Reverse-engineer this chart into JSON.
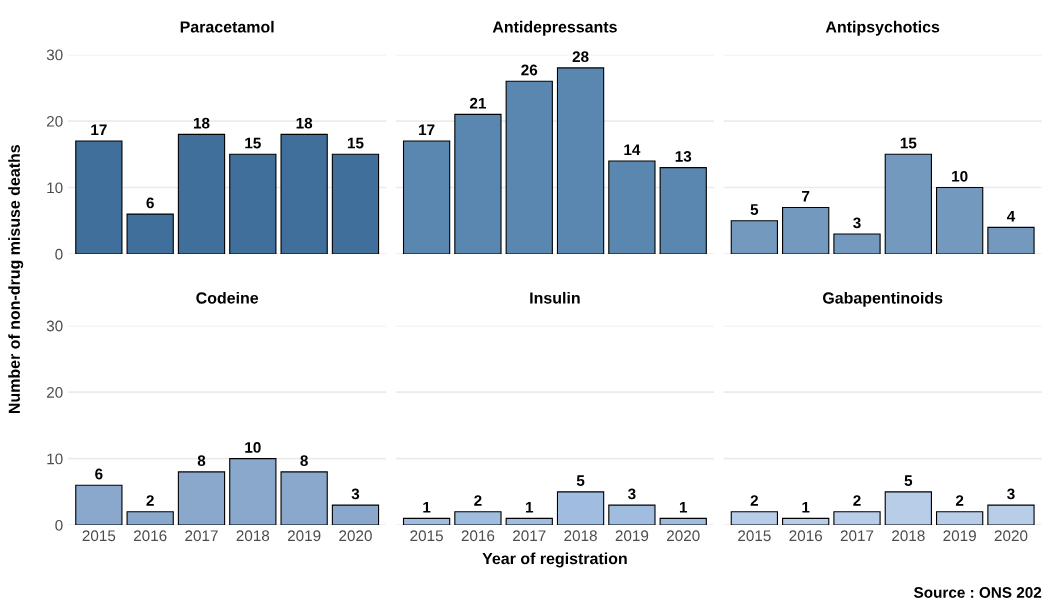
{
  "chart_data": [
    {
      "type": "bar",
      "title": "Paracetamol",
      "ylabel": "Number of non-drug misuse deaths",
      "categories": [
        "2015",
        "2016",
        "2017",
        "2018",
        "2019",
        "2020"
      ],
      "values": [
        17,
        6,
        18,
        15,
        18,
        15
      ],
      "color": "#3f6f9a",
      "data_labels": true,
      "ylim": [
        0,
        30
      ],
      "yticks": [
        0,
        10,
        20,
        30
      ],
      "grid": "y",
      "tick_labels": "y"
    },
    {
      "type": "bar",
      "title": "Antidepressants",
      "categories": [
        "2015",
        "2016",
        "2017",
        "2018",
        "2019",
        "2020"
      ],
      "values": [
        17,
        21,
        26,
        28,
        14,
        13
      ],
      "color": "#5a87b0",
      "data_labels": true,
      "ylim": [
        0,
        30
      ],
      "yticks": [
        0,
        10,
        20,
        30
      ],
      "grid": "y",
      "tick_labels": false
    },
    {
      "type": "bar",
      "title": "Antipsychotics",
      "categories": [
        "2015",
        "2016",
        "2017",
        "2018",
        "2019",
        "2020"
      ],
      "values": [
        5,
        7,
        3,
        15,
        10,
        4
      ],
      "color": "#7399bf",
      "data_labels": true,
      "ylim": [
        0,
        30
      ],
      "yticks": [
        0,
        10,
        20,
        30
      ],
      "grid": "y",
      "tick_labels": false
    },
    {
      "type": "bar",
      "title": "Codeine",
      "categories": [
        "2015",
        "2016",
        "2017",
        "2018",
        "2019",
        "2020"
      ],
      "values": [
        6,
        2,
        8,
        10,
        8,
        3
      ],
      "color": "#89a8cc",
      "data_labels": true,
      "ylim": [
        0,
        30
      ],
      "yticks": [
        0,
        10,
        20,
        30
      ],
      "grid": "y"
    },
    {
      "type": "bar",
      "title": "Insulin",
      "xlabel": "Year of registration",
      "categories": [
        "2015",
        "2016",
        "2017",
        "2018",
        "2019",
        "2020"
      ],
      "values": [
        1,
        2,
        1,
        5,
        3,
        1
      ],
      "color": "#a0bcde",
      "data_labels": true,
      "ylim": [
        0,
        30
      ],
      "yticks": [
        0,
        10,
        20,
        30
      ],
      "grid": "y",
      "tick_labels": "x"
    },
    {
      "type": "bar",
      "title": "Gabapentinoids",
      "annotations": [
        "Source : ONS 202"
      ],
      "categories": [
        "2015",
        "2016",
        "2017",
        "2018",
        "2019",
        "2020"
      ],
      "values": [
        2,
        1,
        2,
        5,
        2,
        3
      ],
      "color": "#b8cde8",
      "data_labels": true,
      "ylim": [
        0,
        30
      ],
      "yticks": [
        0,
        10,
        20,
        30
      ],
      "grid": "y",
      "tick_labels": "x"
    }
  ]
}
